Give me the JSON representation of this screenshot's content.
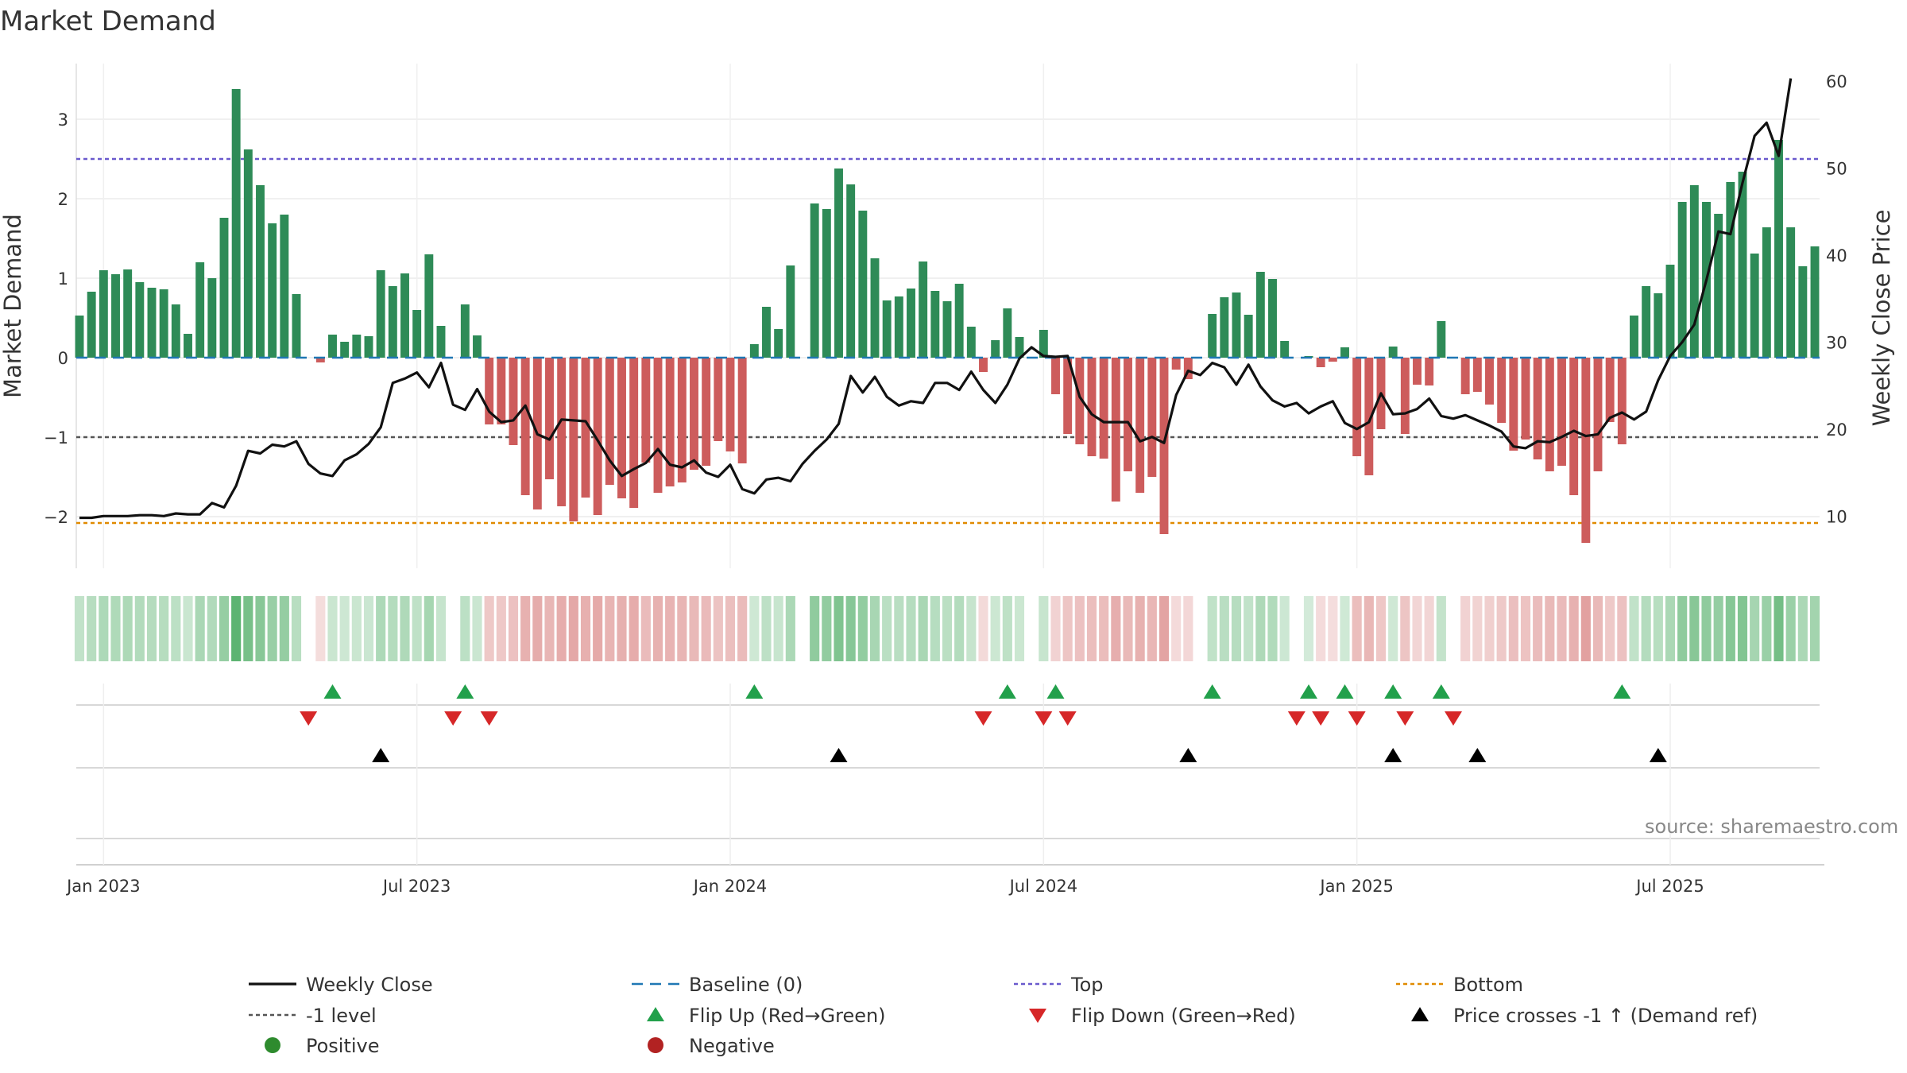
{
  "chart_data": {
    "type": "bar",
    "title": "Market Demand",
    "ylabel": "Market Demand",
    "ylabel_right": "Weekly Close Price",
    "ylim": [
      -2.65,
      3.7
    ],
    "ylim_right": [
      4,
      62
    ],
    "yticks": [
      3,
      2,
      1,
      0,
      -1,
      -2
    ],
    "ytick_labels": [
      "3",
      "2",
      "1",
      "0",
      "−1",
      "−2"
    ],
    "yticks_right": [
      60,
      50,
      40,
      30,
      20,
      10
    ],
    "xticks": [
      {
        "label": "Jan 2023",
        "week": 2
      },
      {
        "label": "Jul 2023",
        "week": 28
      },
      {
        "label": "Jan 2024",
        "week": 54
      },
      {
        "label": "Jul 2024",
        "week": 80
      },
      {
        "label": "Jan 2025",
        "week": 106
      },
      {
        "label": "Jul 2025",
        "week": 132
      }
    ],
    "levels": {
      "top": 2.5,
      "minus_one": -1,
      "bottom": -2.08,
      "baseline": 0
    },
    "demand": [
      0.53,
      0.83,
      1.1,
      1.05,
      1.11,
      0.95,
      0.88,
      0.86,
      0.67,
      0.3,
      1.2,
      1,
      1.76,
      3.38,
      2.62,
      2.17,
      1.69,
      1.8,
      0.8,
      0,
      -0.06,
      0.29,
      0.2,
      0.29,
      0.27,
      1.1,
      0.9,
      1.06,
      0.6,
      1.3,
      0.4,
      0,
      0.67,
      0.28,
      -0.84,
      -0.84,
      -1.1,
      -1.73,
      -1.91,
      -1.53,
      -1.87,
      -2.06,
      -1.76,
      -1.98,
      -1.6,
      -1.77,
      -1.89,
      -1.32,
      -1.7,
      -1.62,
      -1.57,
      -1.41,
      -1.36,
      -1.05,
      -1.18,
      -1.33,
      0.17,
      0.64,
      0.36,
      1.16,
      0,
      1.94,
      1.87,
      2.38,
      2.18,
      1.85,
      1.25,
      0.72,
      0.77,
      0.87,
      1.21,
      0.84,
      0.71,
      0.93,
      0.39,
      -0.18,
      0.22,
      0.62,
      0.26,
      0,
      0.35,
      -0.46,
      -0.96,
      -1.09,
      -1.24,
      -1.27,
      -1.81,
      -1.43,
      -1.7,
      -1.5,
      -2.22,
      -0.15,
      -0.27,
      0,
      0.55,
      0.76,
      0.82,
      0.54,
      1.08,
      0.99,
      0.21,
      0,
      0.02,
      -0.12,
      -0.05,
      0.13,
      -1.24,
      -1.48,
      -0.9,
      0.14,
      -0.96,
      -0.34,
      -0.35,
      0.46,
      0,
      -0.46,
      -0.43,
      -0.59,
      -0.82,
      -1.17,
      -1.03,
      -1.28,
      -1.43,
      -1.36,
      -1.73,
      -2.33,
      -1.43,
      -0.81,
      -1.09,
      0.53,
      0.9,
      0.81,
      1.17,
      1.96,
      2.17,
      1.96,
      1.81,
      2.21,
      2.34,
      1.31,
      1.64,
      2.74,
      1.64,
      1.15,
      1.4
    ],
    "series": [
      {
        "name": "Weekly Close",
        "values": [
          9.8,
          9.8,
          10,
          10,
          10,
          10.1,
          10.1,
          10,
          10.3,
          10.2,
          10.2,
          11.5,
          11,
          13.5,
          17.5,
          17.2,
          18.2,
          18,
          18.6,
          16,
          14.9,
          14.6,
          16.4,
          17.1,
          18.3,
          20.2,
          25.3,
          25.8,
          26.5,
          24.8,
          27.6,
          22.8,
          22.2,
          24.6,
          22,
          20.8,
          21,
          22.7,
          19.4,
          18.8,
          21.1,
          21,
          20.9,
          18.7,
          16.4,
          14.6,
          15.4,
          16.1,
          17.7,
          15.9,
          15.6,
          16.4,
          15,
          14.5,
          15.9,
          13.1,
          12.6,
          14.2,
          14.4,
          14,
          16,
          17.5,
          18.8,
          20.6,
          26.1,
          24.2,
          26,
          23.7,
          22.7,
          23.2,
          23,
          25.3,
          25.3,
          24.5,
          26.6,
          24.5,
          23,
          25.1,
          28.1,
          29.4,
          28.4,
          28.3,
          28.4,
          23.7,
          21.7,
          20.8,
          20.8,
          20.8,
          18.6,
          19.1,
          18.4,
          23.9,
          26.7,
          26.2,
          27.6,
          27.1,
          25.1,
          27.4,
          24.9,
          23.3,
          22.6,
          23,
          21.8,
          22.6,
          23.2,
          20.7,
          20,
          20.8,
          24.1,
          21.7,
          21.8,
          22.3,
          23.5,
          21.5,
          21.2,
          21.6,
          21,
          20.4,
          19.7,
          18,
          17.8,
          18.6,
          18.5,
          19.1,
          19.8,
          19.2,
          19.4,
          21.3,
          21.9,
          21.1,
          22,
          25.6,
          28.4,
          30,
          32,
          37.1,
          42.7,
          42.4,
          48.3,
          53.7,
          55.2,
          51.4,
          60.3
        ]
      },
      {
        "name": "Baseline (0)"
      },
      {
        "name": "Top"
      },
      {
        "name": "Bottom"
      },
      {
        "name": "-1 level"
      }
    ],
    "flip_up_weeks": [
      21,
      32,
      56,
      77,
      81,
      94,
      102,
      105,
      109,
      113,
      128
    ],
    "flip_down_weeks": [
      19,
      31,
      34,
      75,
      80,
      82,
      101,
      103,
      106,
      110,
      114
    ],
    "cross_weeks": [
      25,
      63,
      92,
      109,
      116,
      131
    ],
    "legend": [
      {
        "label": "Weekly Close",
        "type": "line"
      },
      {
        "label": "Baseline (0)",
        "type": "dash"
      },
      {
        "label": "Top",
        "type": "dot"
      },
      {
        "label": "Bottom",
        "type": "dotorange"
      },
      {
        "label": "-1 level",
        "type": "dotgray"
      },
      {
        "label": "Flip Up (Red→Green)",
        "type": "triup"
      },
      {
        "label": "Flip Down (Green→Red)",
        "type": "tridown"
      },
      {
        "label": "Price crosses -1 ↑ (Demand ref)",
        "type": "triblack"
      },
      {
        "label": "Positive",
        "type": "dotgreen"
      },
      {
        "label": "Negative",
        "type": "dotred"
      }
    ],
    "source": "source: sharemaestro.com"
  },
  "colors": {
    "positive": "#2e8b57",
    "negative": "#cd5c5c",
    "close": "#111111",
    "baseline": "#1f77b4",
    "top": "#6a5acd",
    "bottom": "#e08a00",
    "minus_one": "#555555",
    "flip_up": "#22a04b",
    "flip_down": "#d62728",
    "cross": "#000000",
    "dot_green": "#2e8b2e",
    "dot_red": "#b22222"
  }
}
